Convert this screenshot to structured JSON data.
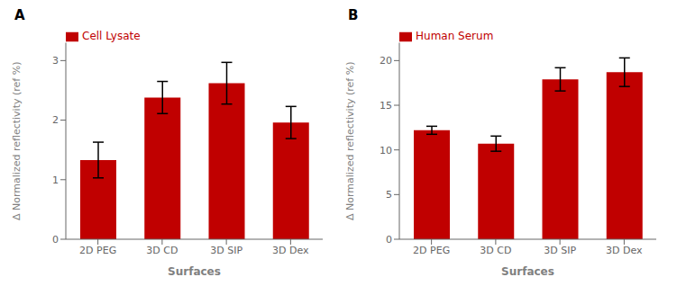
{
  "chart_data": [
    {
      "type": "bar",
      "title": "A",
      "categories": [
        "2D PEG",
        "3D CD",
        "3D SIP",
        "3D Dex"
      ],
      "series": [
        {
          "name": "Cell Lysate",
          "color": "#c00000",
          "values": [
            1.33,
            2.38,
            2.62,
            1.96
          ],
          "errors": [
            0.3,
            0.27,
            0.35,
            0.27
          ]
        }
      ],
      "ylim": [
        0,
        3.3
      ],
      "yticks": [
        0,
        1,
        2,
        3
      ],
      "ylabel": "Δ Normalized reflectivity (ref %)",
      "xlabel": "Surfaces",
      "legend": "upper left"
    },
    {
      "type": "bar",
      "title": "B",
      "categories": [
        "2D PEG",
        "3D CD",
        "3D SIP",
        "3D Dex"
      ],
      "series": [
        {
          "name": "Human Serum",
          "color": "#c00000",
          "values": [
            12.2,
            10.7,
            17.9,
            18.7
          ],
          "errors": [
            0.45,
            0.85,
            1.3,
            1.6
          ]
        }
      ],
      "ylim": [
        0,
        22
      ],
      "yticks": [
        0,
        5,
        10,
        15,
        20
      ],
      "ylabel": "Δ Normalized reflectivity (ref %)",
      "xlabel": "Surfaces",
      "legend": "upper left"
    }
  ]
}
